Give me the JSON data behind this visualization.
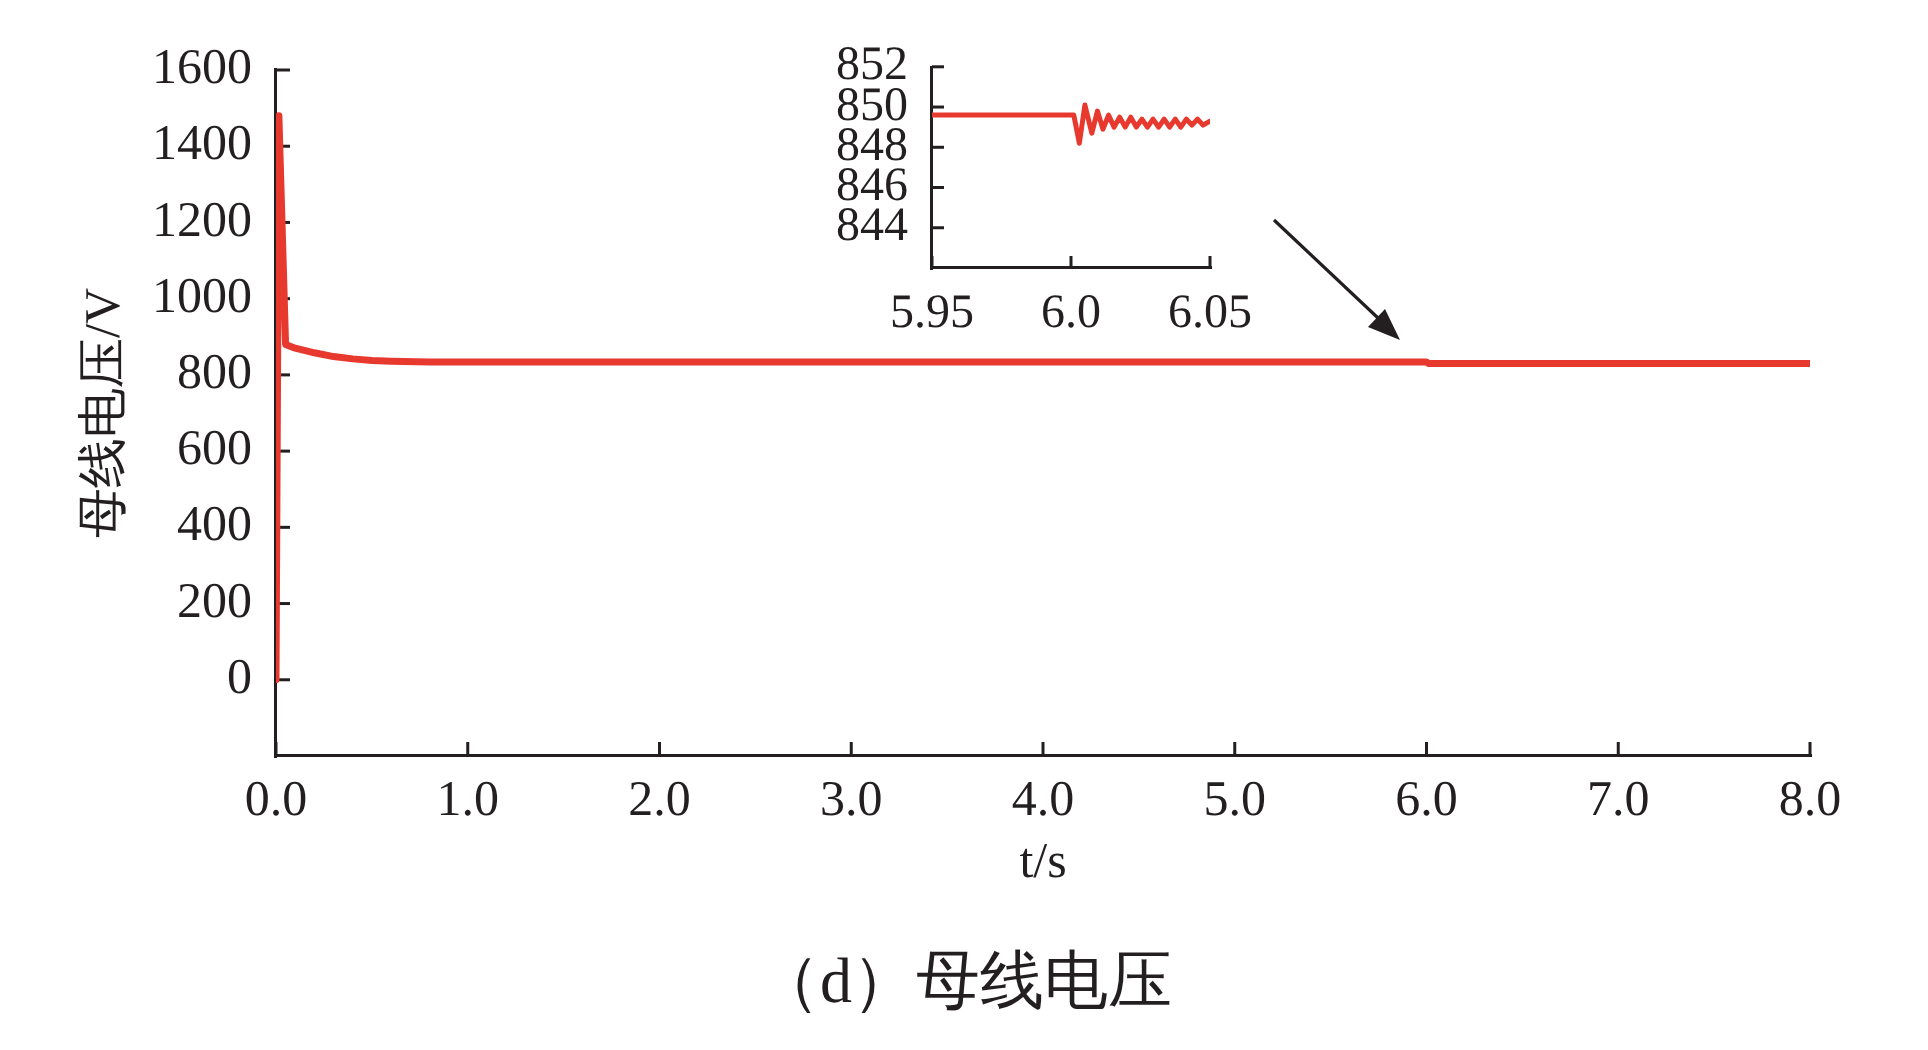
{
  "chart_data": [
    {
      "type": "line",
      "title": "（d）母线电压",
      "xlabel": "t/s",
      "ylabel": "母线电压/V",
      "x": [
        0,
        0.015,
        0.05,
        0.1,
        0.2,
        0.3,
        0.4,
        0.5,
        0.6,
        0.8,
        1.0,
        2.0,
        4.0,
        6.0,
        6.01,
        8.0
      ],
      "series": [
        {
          "color": "#e8392f",
          "values": [
            0,
            1480,
            880,
            870,
            858,
            848,
            842,
            838,
            836,
            834,
            834,
            834,
            834,
            834,
            830,
            830
          ]
        }
      ],
      "xlim": [
        0,
        8
      ],
      "xticks": [
        {
          "value": 0,
          "label": "0.0"
        },
        {
          "value": 1,
          "label": "1.0"
        },
        {
          "value": 2,
          "label": "2.0"
        },
        {
          "value": 3,
          "label": "3.0"
        },
        {
          "value": 4,
          "label": "4.0"
        },
        {
          "value": 5,
          "label": "5.0"
        },
        {
          "value": 6,
          "label": "6.0"
        },
        {
          "value": 7,
          "label": "7.0"
        },
        {
          "value": 8,
          "label": "8.0"
        }
      ],
      "ylim": [
        -200,
        1600
      ],
      "yticks": [
        0,
        200,
        400,
        600,
        800,
        1000,
        1200,
        1400,
        1600
      ],
      "grid": false,
      "legend": false,
      "marker": "none"
    },
    {
      "type": "line",
      "x": [
        5.95,
        6.0,
        6.001,
        6.003,
        6.005,
        6.0075,
        6.0095,
        6.0115,
        6.0135,
        6.0155,
        6.0175,
        6.0195,
        6.0215,
        6.0235,
        6.0255,
        6.0275,
        6.0295,
        6.0315,
        6.0335,
        6.0355,
        6.0375,
        6.0395,
        6.0415,
        6.0435,
        6.0455,
        6.0475,
        6.05
      ],
      "series": [
        {
          "color": "#e8392f",
          "values": [
            849.6,
            849.6,
            849.6,
            848.2,
            850.1,
            848.7,
            849.8,
            848.9,
            849.6,
            849.0,
            849.5,
            849.0,
            849.5,
            849.0,
            849.4,
            849.0,
            849.4,
            849.0,
            849.4,
            849.0,
            849.4,
            849.0,
            849.4,
            849.1,
            849.4,
            849.1,
            849.3
          ]
        }
      ],
      "xlim": [
        5.95,
        6.05
      ],
      "xticks": [
        5.95,
        {
          "value": 6,
          "label": "6.0"
        },
        6.05
      ],
      "ylim": [
        842,
        852
      ],
      "yticks": [
        844,
        846,
        848,
        850,
        852
      ],
      "grid": false,
      "legend": false,
      "marker": "none"
    }
  ]
}
